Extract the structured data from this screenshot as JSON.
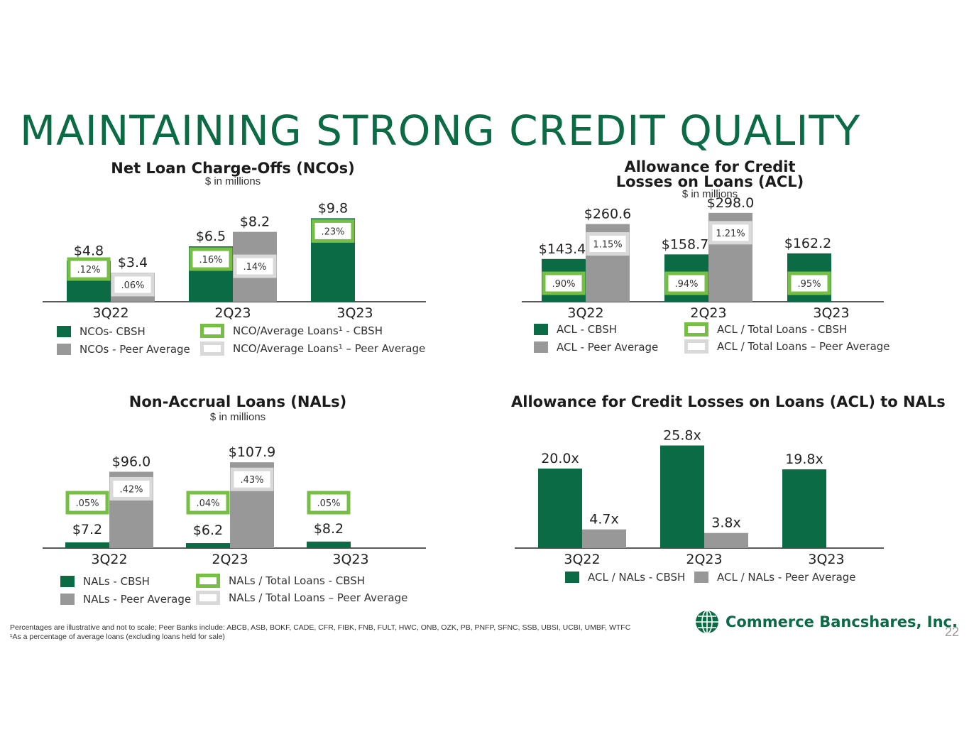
{
  "title": "MAINTAINING STRONG CREDIT QUALITY",
  "colors": {
    "cbsh": "#0a6b45",
    "peer": "#989898",
    "cbsh_box": "#76be44",
    "peer_box": "#d9d9d9"
  },
  "footnote": {
    "line1": "Percentages are illustrative and not to scale; Peer Banks include: ABCB, ASB, BOKF, CADE, CFR, FIBK, FNB, FULT, HWC, ONB, OZK, PB, PNFP, SFNC, SSB, UBSI, UCBI, UMBF, WTFC",
    "line2": "¹As a percentage of average loans (excluding loans held for sale)"
  },
  "logo": {
    "name": "Commerce Bancshares, Inc.",
    "icon": "globe-icon"
  },
  "page_number": "22",
  "chart_data": [
    {
      "id": "nco",
      "type": "bar",
      "title": "Net Loan Charge-Offs (NCOs)",
      "subtitle": "$ in millions",
      "categories": [
        "3Q22",
        "2Q23",
        "3Q23"
      ],
      "series": [
        {
          "name": "NCOs- CBSH",
          "values": [
            4.8,
            6.5,
            9.8
          ],
          "labels": [
            "$4.8",
            "$6.5",
            "$9.8"
          ]
        },
        {
          "name": "NCOs - Peer Average",
          "values": [
            3.4,
            8.2,
            null
          ],
          "labels": [
            "$3.4",
            "$8.2",
            ""
          ]
        }
      ],
      "ratio_series": [
        {
          "name": "NCO/Average Loans¹ - CBSH",
          "labels": [
            ".12%",
            ".16%",
            ".23%"
          ]
        },
        {
          "name": "NCO/Average Loans¹ – Peer Average",
          "labels": [
            ".06%",
            ".14%",
            ""
          ]
        }
      ],
      "ylim": [
        0,
        12
      ]
    },
    {
      "id": "acl",
      "type": "bar",
      "title": "Allowance for Credit Losses on Loans (ACL)",
      "title_lines": [
        "Allowance for Credit",
        "Losses on Loans (ACL)"
      ],
      "subtitle": "$ in millions",
      "categories": [
        "3Q22",
        "2Q23",
        "3Q23"
      ],
      "series": [
        {
          "name": "ACL - CBSH",
          "values": [
            143.4,
            158.7,
            162.2
          ],
          "labels": [
            "$143.4",
            "$158.7",
            "$162.2"
          ]
        },
        {
          "name": "ACL - Peer Average",
          "values": [
            260.6,
            298.0,
            null
          ],
          "labels": [
            "$260.6",
            "$298.0",
            ""
          ]
        }
      ],
      "ratio_series": [
        {
          "name": "ACL / Total Loans - CBSH",
          "labels": [
            ".90%",
            ".94%",
            ".95%"
          ]
        },
        {
          "name": "ACL / Total Loans – Peer Average",
          "labels": [
            "1.15%",
            "1.21%",
            ""
          ]
        }
      ],
      "ylim": [
        0,
        340
      ]
    },
    {
      "id": "nal",
      "type": "bar",
      "title": "Non-Accrual Loans (NALs)",
      "subtitle": "$ in millions",
      "categories": [
        "3Q22",
        "2Q23",
        "3Q23"
      ],
      "series": [
        {
          "name": "NALs - CBSH",
          "values": [
            7.2,
            6.2,
            8.2
          ],
          "labels": [
            "$7.2",
            "$6.2",
            "$8.2"
          ]
        },
        {
          "name": "NALs - Peer Average",
          "values": [
            96.0,
            107.9,
            null
          ],
          "labels": [
            "$96.0",
            "$107.9",
            ""
          ]
        }
      ],
      "ratio_series": [
        {
          "name": "NALs / Total Loans - CBSH",
          "labels": [
            ".05%",
            ".04%",
            ".05%"
          ]
        },
        {
          "name": "NALs / Total Loans – Peer Average",
          "labels": [
            ".42%",
            ".43%",
            ""
          ]
        }
      ],
      "ylim": [
        0,
        130
      ]
    },
    {
      "id": "acl_nal",
      "type": "bar",
      "title": "Allowance for Credit Losses on Loans (ACL) to NALs",
      "subtitle": "",
      "categories": [
        "3Q22",
        "2Q23",
        "3Q23"
      ],
      "series": [
        {
          "name": "ACL / NALs - CBSH",
          "values": [
            20.0,
            25.8,
            19.8
          ],
          "labels": [
            "20.0x",
            "25.8x",
            "19.8x"
          ]
        },
        {
          "name": "ACL / NALs - Peer Average",
          "values": [
            4.7,
            3.8,
            null
          ],
          "labels": [
            "4.7x",
            "3.8x",
            ""
          ]
        }
      ],
      "ylim": [
        0,
        29
      ]
    }
  ]
}
